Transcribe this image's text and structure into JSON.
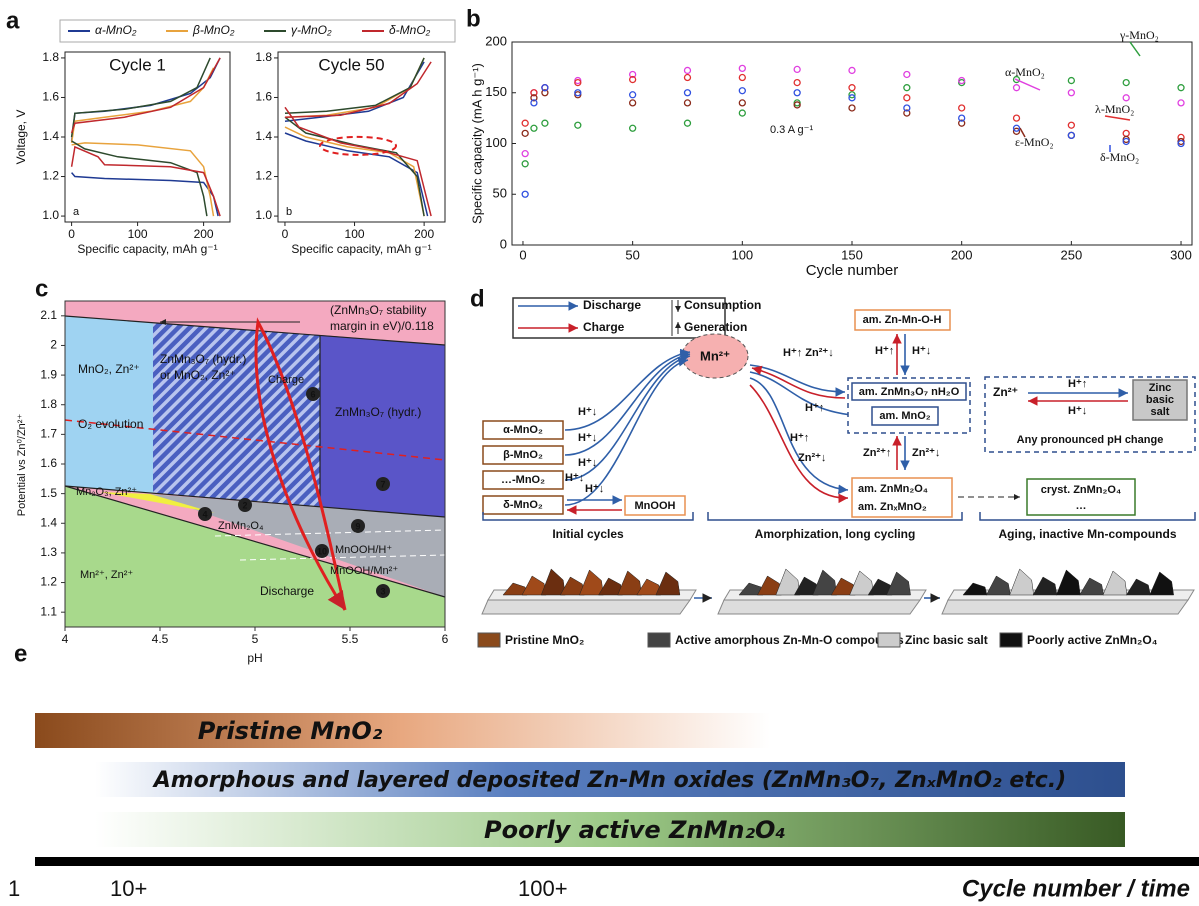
{
  "chart_data": [
    {
      "type": "line",
      "label": "a",
      "legend": [
        {
          "name": "α-MnO₂",
          "color": "#1f3a93"
        },
        {
          "name": "β-MnO₂",
          "color": "#e8a33d"
        },
        {
          "name": "γ-MnO₂",
          "color": "#2d4a2d"
        },
        {
          "name": "δ-MnO₂",
          "color": "#c0282d"
        }
      ],
      "subplots": [
        {
          "title": "Cycle 1",
          "tag": "a",
          "xlabel": "Specific capacity, mAh g⁻¹",
          "ylabel": "Voltage, V",
          "xlim": [
            -10,
            240
          ],
          "ylim": [
            0.97,
            1.83
          ],
          "xticks": [
            0,
            100,
            200
          ],
          "yticks": [
            {
              "value": 1,
              "label": "1.0"
            },
            1.2,
            1.4,
            1.6,
            1.8
          ],
          "series": [
            {
              "x": [
                0,
                5,
                50,
                150,
                200,
                215,
                222,
                null,
                0,
                5,
                50,
                120,
                180,
                210,
                225
              ],
              "values": [
                1.22,
                1.2,
                1.19,
                1.18,
                1.17,
                1.1,
                1.0,
                null,
                1.38,
                1.52,
                1.53,
                1.56,
                1.62,
                1.7,
                1.8
              ]
            },
            {
              "x": [
                0,
                20,
                100,
                180,
                200,
                210,
                215,
                null,
                0,
                5,
                50,
                120,
                180,
                200,
                215
              ],
              "values": [
                1.36,
                1.37,
                1.36,
                1.33,
                1.25,
                1.1,
                1.0,
                null,
                1.37,
                1.48,
                1.5,
                1.53,
                1.58,
                1.65,
                1.75
              ]
            },
            {
              "x": [
                0,
                20,
                70,
                150,
                190,
                200,
                205,
                null,
                0,
                5,
                80,
                150,
                190,
                210
              ],
              "values": [
                1.38,
                1.34,
                1.3,
                1.27,
                1.22,
                1.1,
                1.0,
                null,
                1.4,
                1.52,
                1.54,
                1.58,
                1.65,
                1.8
              ]
            },
            {
              "x": [
                0,
                5,
                40,
                50,
                150,
                200,
                215,
                225,
                null,
                0,
                5,
                80,
                150,
                200,
                225
              ],
              "values": [
                1.25,
                1.35,
                1.3,
                1.26,
                1.25,
                1.22,
                1.1,
                1.0,
                null,
                1.42,
                1.47,
                1.5,
                1.55,
                1.65,
                1.8
              ]
            }
          ]
        },
        {
          "title": "Cycle 50",
          "tag": "b",
          "xlabel": "Specific capacity, mAh g⁻¹",
          "xlim": [
            -10,
            230
          ],
          "ylim": [
            0.97,
            1.83
          ],
          "xticks": [
            0,
            100,
            200
          ],
          "yticks": [
            {
              "value": 1,
              "label": "1.0"
            },
            1.2,
            1.4,
            1.6,
            1.8
          ],
          "series": [
            {
              "x": [
                0,
                30,
                90,
                150,
                190,
                205,
                null,
                0,
                50,
                120,
                170,
                200
              ],
              "values": [
                1.42,
                1.38,
                1.33,
                1.3,
                1.22,
                1.0,
                null,
                1.48,
                1.5,
                1.53,
                1.6,
                1.78
              ]
            },
            {
              "x": [
                0,
                30,
                90,
                150,
                185,
                200,
                null,
                0,
                60,
                130,
                180,
                200
              ],
              "values": [
                1.45,
                1.4,
                1.35,
                1.32,
                1.25,
                1.0,
                null,
                1.5,
                1.51,
                1.55,
                1.65,
                1.8
              ]
            },
            {
              "x": [
                0,
                30,
                100,
                160,
                190,
                200,
                null,
                0,
                60,
                130,
                180,
                200
              ],
              "values": [
                1.5,
                1.42,
                1.36,
                1.32,
                1.2,
                1.0,
                null,
                1.52,
                1.53,
                1.56,
                1.65,
                1.8
              ]
            },
            {
              "x": [
                0,
                20,
                80,
                140,
                190,
                210,
                null,
                0,
                80,
                150,
                190,
                210
              ],
              "values": [
                1.55,
                1.45,
                1.37,
                1.33,
                1.28,
                1.0,
                null,
                1.5,
                1.51,
                1.57,
                1.67,
                1.78
              ]
            }
          ]
        }
      ]
    },
    {
      "type": "scatter",
      "label": "b",
      "xlabel": "Cycle number",
      "ylabel": "Specific capacity (mA h g⁻¹)",
      "annotation": "0.3 A g⁻¹",
      "xlim": [
        -5,
        305
      ],
      "ylim": [
        0,
        200
      ],
      "xticks": [
        0,
        50,
        100,
        150,
        200,
        250,
        300
      ],
      "yticks": [
        0,
        50,
        100,
        150,
        200
      ],
      "series": [
        {
          "name": "γ-MnO₂",
          "color": "#2e9e3e",
          "x": [
            1,
            5,
            10,
            25,
            50,
            75,
            100,
            125,
            150,
            175,
            200,
            225,
            250,
            275,
            300
          ],
          "values": [
            80,
            115,
            120,
            118,
            115,
            120,
            130,
            140,
            148,
            155,
            160,
            163,
            162,
            160,
            155
          ]
        },
        {
          "name": "α-MnO₂",
          "color": "#e040e0",
          "x": [
            1,
            5,
            10,
            25,
            50,
            75,
            100,
            125,
            150,
            175,
            200,
            225,
            250,
            275,
            300
          ],
          "values": [
            90,
            150,
            155,
            162,
            168,
            172,
            174,
            173,
            172,
            168,
            162,
            155,
            150,
            145,
            140
          ]
        },
        {
          "name": "λ-MnO₂",
          "color": "#e03030",
          "x": [
            1,
            5,
            10,
            25,
            50,
            75,
            100,
            125,
            150,
            175,
            200,
            225,
            250,
            275,
            300
          ],
          "values": [
            120,
            150,
            155,
            160,
            163,
            165,
            165,
            160,
            155,
            145,
            135,
            125,
            118,
            110,
            106
          ]
        },
        {
          "name": "ε-MnO₂",
          "color": "#8b2a1a",
          "x": [
            1,
            5,
            10,
            25,
            50,
            75,
            100,
            125,
            150,
            175,
            200,
            225,
            250,
            275,
            300
          ],
          "values": [
            110,
            145,
            150,
            148,
            140,
            140,
            140,
            138,
            135,
            130,
            120,
            112,
            108,
            104,
            102
          ]
        },
        {
          "name": "δ-MnO₂",
          "color": "#3050e0",
          "x": [
            1,
            5,
            10,
            25,
            50,
            75,
            100,
            125,
            150,
            175,
            200,
            225,
            250,
            275,
            300
          ],
          "values": [
            50,
            140,
            155,
            150,
            148,
            150,
            152,
            150,
            145,
            135,
            125,
            115,
            108,
            102,
            100
          ]
        }
      ]
    },
    {
      "type": "phase-diagram",
      "label": "c",
      "xlabel": "pH",
      "ylabel": "Potential vs Zn⁰/Zn²⁺",
      "xlim": [
        4,
        6
      ],
      "ylim": [
        1.05,
        2.15
      ],
      "xticks": [
        4,
        4.5,
        5,
        5.5,
        6
      ],
      "yticks": [
        1.1,
        1.2,
        1.3,
        1.4,
        1.5,
        1.6,
        1.7,
        1.8,
        1.9,
        2,
        2.1
      ],
      "annotations": [
        "(ZnMn₃O₇ stability",
        "margin in eV)/0.118",
        "MnO₂, Zn²⁺",
        "ZnMn₃O₇ (hydr.)",
        "or MnO₂, Zn²⁺",
        "ZnMn₃O₇ (hydr.)",
        "O₂ evolution",
        "Charge",
        "Discharge",
        "Mn₂O₃, Zn²⁺",
        "ZnMn₂O₄",
        "MnOOH/H⁺",
        "MnOOH/Mn²⁺",
        "Mn²⁺, Zn²⁺"
      ],
      "markers": [
        "2",
        "3",
        "4",
        "6",
        "7",
        "9",
        "10"
      ]
    }
  ],
  "scheme": {
    "label": "d",
    "legend": [
      "Discharge",
      "Charge",
      "Consumption",
      "Generation"
    ],
    "center": "Mn²⁺",
    "phases": [
      "α-MnO₂",
      "β-MnO₂",
      "…-MnO₂",
      "δ-MnO₂"
    ],
    "phase_ions": [
      "H⁺↓",
      "H⁺↓",
      "H⁺↓",
      "H⁺↓",
      "H⁺↓"
    ],
    "mnooh": "MnOOH",
    "ions_top": "H⁺↑  Zn²⁺↓",
    "hydroxide": "am. Zn-Mn-O-H",
    "hydroxide_ions": [
      "H⁺↑",
      "H⁺↓"
    ],
    "oxides": [
      "am. ZnMn₃O₇ nH₂O",
      "am. MnO₂"
    ],
    "ions_mid": [
      "H⁺↑",
      "H⁺↑",
      "Zn²⁺↓"
    ],
    "spinel_ions": [
      "Zn²⁺↑",
      "Zn²⁺↓"
    ],
    "spinels": [
      "am. ZnMn₂O₄",
      "am. ZnₓMnO₂"
    ],
    "crystalline": [
      "cryst. ZnMn₂O₄",
      "…"
    ],
    "salt_ion": "Zn²⁺",
    "salt_ions": [
      "H⁺↑",
      "H⁺↓"
    ],
    "salt_label": [
      "Zinc",
      "basic",
      "salt"
    ],
    "salt_note": "Any pronounced pH change",
    "stages": [
      "Initial cycles",
      "Amorphization, long cycling",
      "Aging, inactive Mn-compounds"
    ],
    "materials": [
      "Pristine MnO₂",
      "Active amorphous Zn-Mn-O compounds",
      "Zinc basic salt",
      "Poorly active ZnMn₂O₄"
    ]
  },
  "timeline": {
    "label": "e",
    "bars": [
      "Pristine MnO₂",
      "Amorphous and layered deposited Zn-Mn oxides (ZnMn₃O₇, ZnₓMnO₂ etc.)",
      "Poorly active ZnMn₂O₄"
    ],
    "marks": [
      "1",
      "10+",
      "100+"
    ],
    "axis_title": "Cycle number / time"
  }
}
